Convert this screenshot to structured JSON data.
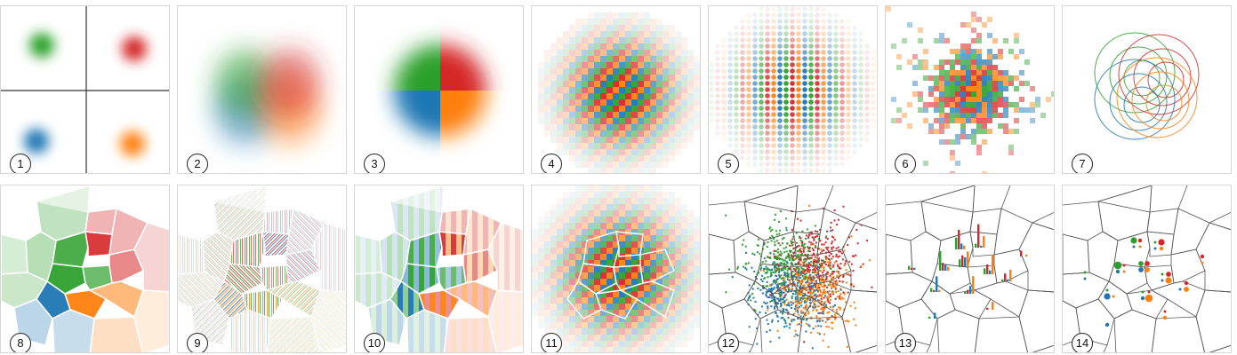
{
  "colors": {
    "green": "#2ca02c",
    "red": "#d62728",
    "blue": "#1f77b4",
    "orange": "#ff7f0e"
  },
  "panels": [
    {
      "label": "1",
      "technique": "separate-density-quadrants"
    },
    {
      "label": "2",
      "technique": "blended-density"
    },
    {
      "label": "3",
      "technique": "quadrant-split-density"
    },
    {
      "label": "4",
      "technique": "checkerboard-weaving"
    },
    {
      "label": "5",
      "technique": "dot-weaving"
    },
    {
      "label": "6",
      "technique": "random-pixel-weaving"
    },
    {
      "label": "7",
      "technique": "contour-circles"
    },
    {
      "label": "8",
      "technique": "voronoi-dominant-color"
    },
    {
      "label": "9",
      "technique": "voronoi-hatching"
    },
    {
      "label": "10",
      "technique": "voronoi-stripes"
    },
    {
      "label": "11",
      "technique": "voronoi-checker-weaving"
    },
    {
      "label": "12",
      "technique": "voronoi-scatter-points"
    },
    {
      "label": "13",
      "technique": "voronoi-bar-glyphs"
    },
    {
      "label": "14",
      "technique": "voronoi-dot-glyphs"
    }
  ]
}
